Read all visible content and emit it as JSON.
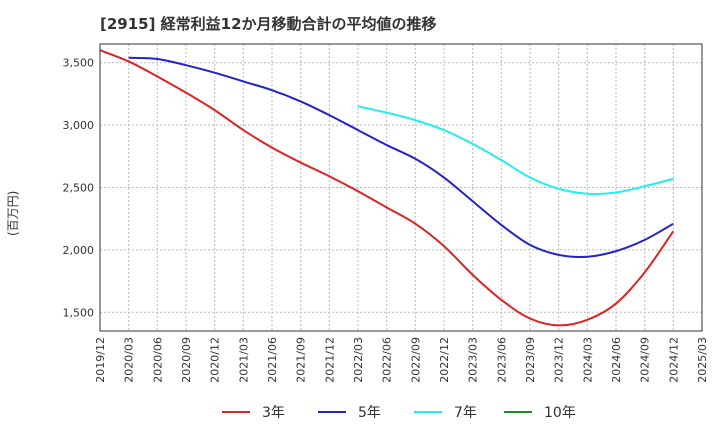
{
  "title": "[2915]  経常利益12か月移動合計の平均値の推移",
  "chart_data": {
    "type": "line",
    "title": "[2915]  経常利益12か月移動合計の平均値の推移",
    "ylabel": "(百万円)",
    "xlabel": "",
    "ylim": [
      1350,
      3650
    ],
    "yticks": [
      1500,
      2000,
      2500,
      3000,
      3500
    ],
    "ytick_labels": [
      "1,500",
      "2,000",
      "2,500",
      "3,000",
      "3,500"
    ],
    "xticks": [
      "2019/12",
      "2020/03",
      "2020/06",
      "2020/09",
      "2020/12",
      "2021/03",
      "2021/06",
      "2021/09",
      "2021/12",
      "2022/03",
      "2022/06",
      "2022/09",
      "2022/12",
      "2023/03",
      "2023/06",
      "2023/09",
      "2023/12",
      "2024/03",
      "2024/06",
      "2024/09",
      "2024/12",
      "2025/03"
    ],
    "grid": true,
    "legend_position": "bottom",
    "series": [
      {
        "name": "3年",
        "color": "#dd2222",
        "x": [
          "2019/12",
          "2020/03",
          "2020/06",
          "2020/09",
          "2020/12",
          "2021/03",
          "2021/06",
          "2021/09",
          "2021/12",
          "2022/03",
          "2022/06",
          "2022/09",
          "2022/12",
          "2023/03",
          "2023/06",
          "2023/09",
          "2023/12",
          "2024/03",
          "2024/06",
          "2024/09",
          "2024/12"
        ],
        "values": [
          3600,
          3510,
          3390,
          3260,
          3120,
          2960,
          2820,
          2700,
          2590,
          2470,
          2340,
          2210,
          2030,
          1800,
          1600,
          1450,
          1395,
          1440,
          1570,
          1820,
          2150
        ]
      },
      {
        "name": "5年",
        "color": "#2222cc",
        "x": [
          "2020/03",
          "2020/06",
          "2020/09",
          "2020/12",
          "2021/03",
          "2021/06",
          "2021/09",
          "2021/12",
          "2022/03",
          "2022/06",
          "2022/09",
          "2022/12",
          "2023/03",
          "2023/06",
          "2023/09",
          "2023/12",
          "2024/03",
          "2024/06",
          "2024/09",
          "2024/12"
        ],
        "values": [
          3540,
          3530,
          3480,
          3420,
          3350,
          3280,
          3190,
          3080,
          2960,
          2840,
          2730,
          2580,
          2390,
          2200,
          2040,
          1960,
          1945,
          1990,
          2080,
          2210
        ]
      },
      {
        "name": "7年",
        "color": "#22eeee",
        "x": [
          "2022/03",
          "2022/06",
          "2022/09",
          "2022/12",
          "2023/03",
          "2023/06",
          "2023/09",
          "2023/12",
          "2024/03",
          "2024/06",
          "2024/09",
          "2024/12"
        ],
        "values": [
          3150,
          3100,
          3040,
          2960,
          2850,
          2720,
          2580,
          2490,
          2450,
          2460,
          2510,
          2570
        ]
      },
      {
        "name": "10年",
        "color": "#228822",
        "x": [],
        "values": []
      }
    ]
  }
}
